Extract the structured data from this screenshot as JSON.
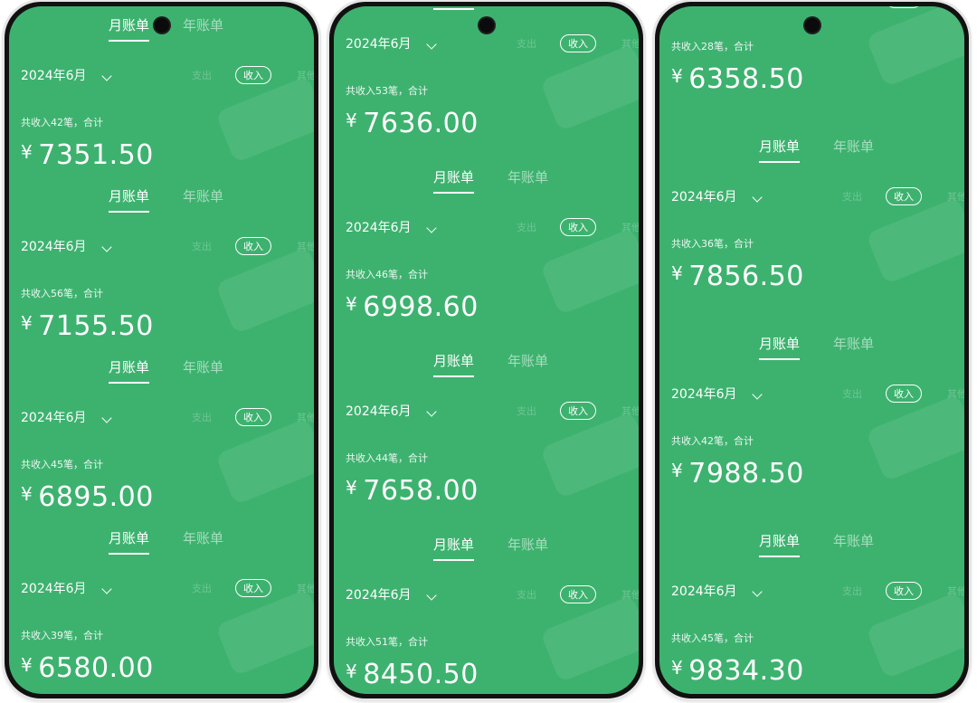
{
  "tabs": {
    "monthly": "月账单",
    "yearly": "年账单"
  },
  "header": {
    "month": "2024年6月",
    "expense": "支出",
    "income": "收入",
    "other": "其他"
  },
  "currency": "¥",
  "colors": {
    "screen_bg": "#3db26f",
    "text": "#ffffff"
  },
  "phones": [
    {
      "cards": [
        {
          "count_text": "共收入42笔，合计",
          "amount": "7351.50"
        },
        {
          "count_text": "共收入56笔，合计",
          "amount": "7155.50"
        },
        {
          "count_text": "共收入45笔，合计",
          "amount": "6895.00"
        },
        {
          "count_text": "共收入39笔，合计",
          "amount": "6580.00"
        }
      ]
    },
    {
      "cards": [
        {
          "count_text": "共收入53笔，合计",
          "amount": "7636.00"
        },
        {
          "count_text": "共收入46笔，合计",
          "amount": "6998.60"
        },
        {
          "count_text": "共收入44笔，合计",
          "amount": "7658.00"
        },
        {
          "count_text": "共收入51笔，合计",
          "amount": "8450.50"
        }
      ]
    },
    {
      "cards": [
        {
          "count_text": "共收入28笔，合计",
          "amount": "6358.50"
        },
        {
          "count_text": "共收入36笔，合计",
          "amount": "7856.50"
        },
        {
          "count_text": "共收入42笔，合计",
          "amount": "7988.50"
        },
        {
          "count_text": "共收入45笔，合计",
          "amount": "9834.30"
        }
      ]
    }
  ]
}
